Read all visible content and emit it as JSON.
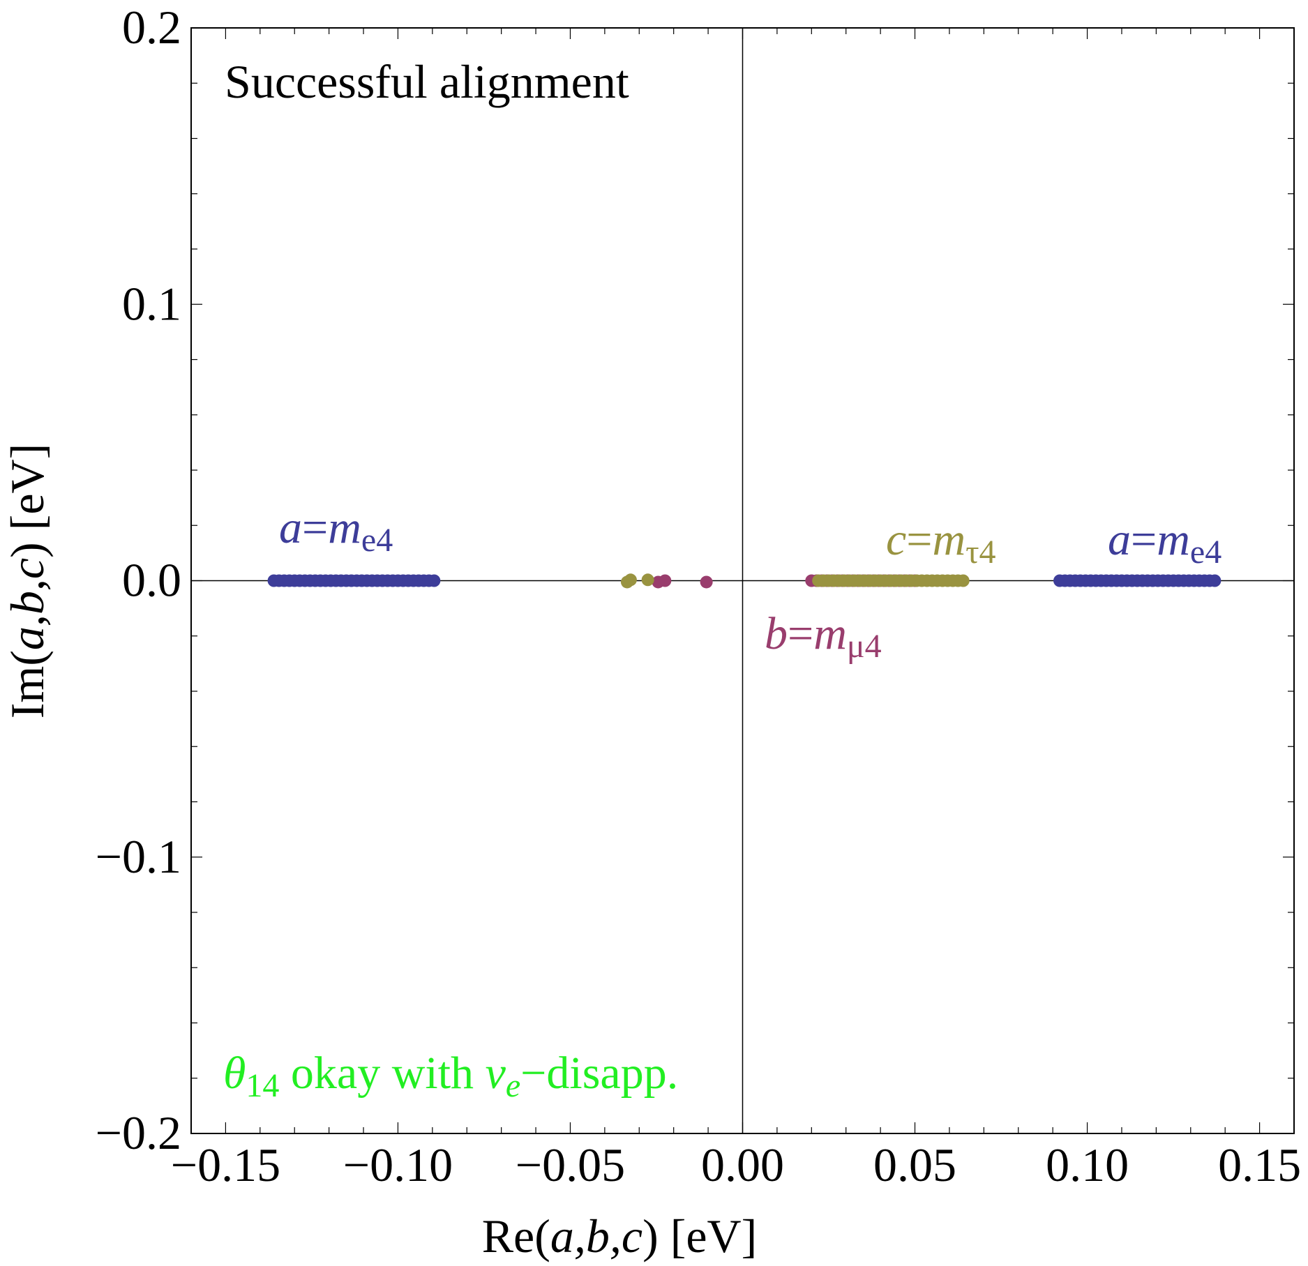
{
  "chart_data": {
    "type": "scatter",
    "title": "Successful alignment",
    "xlabel": {
      "pre": "Re(",
      "vars": "a,b,c",
      "post": ") [eV]"
    },
    "ylabel": {
      "pre": "Im(",
      "vars": "a,b,c",
      "post": ") [eV]"
    },
    "xlim": [
      -0.16,
      0.16
    ],
    "ylim": [
      -0.2,
      0.2
    ],
    "x_ticks": [
      -0.15,
      -0.1,
      -0.05,
      0.0,
      0.05,
      0.1,
      0.15
    ],
    "x_tick_labels": [
      "−0.15",
      "−0.10",
      "−0.05",
      "0.00",
      "0.05",
      "0.10",
      "0.15"
    ],
    "y_ticks": [
      -0.2,
      -0.1,
      0.0,
      0.1,
      0.2
    ],
    "y_tick_labels": [
      "−0.2",
      "−0.1",
      "0.0",
      "0.1",
      "0.2"
    ],
    "colors": {
      "a": "#3d3d99",
      "b": "#993d6d",
      "c": "#999340",
      "note": "#22ee22",
      "axis": "#000000"
    },
    "series": [
      {
        "name": "a",
        "label_var": "a",
        "label_mass": "m",
        "label_sub": "e4",
        "color_key": "a",
        "ranges": [
          [
            -0.136,
            -0.089
          ],
          [
            0.092,
            0.138
          ]
        ],
        "step": 0.0015
      },
      {
        "name": "b",
        "label_var": "b",
        "label_mass": "m",
        "label_sub": "μ4",
        "color_key": "b",
        "ranges": [
          [
            0.02,
            0.05
          ]
        ],
        "step": 0.0015,
        "extra_points": [
          [
            -0.0225,
            0.0
          ],
          [
            -0.0245,
            -0.0005
          ],
          [
            -0.0105,
            -0.0005
          ]
        ]
      },
      {
        "name": "c",
        "label_var": "c",
        "label_mass": "m",
        "label_sub": "τ4",
        "color_key": "c",
        "ranges": [
          [
            0.022,
            0.064
          ]
        ],
        "step": 0.0015,
        "extra_points": [
          [
            -0.0335,
            -0.0005
          ],
          [
            -0.0325,
            0.0003
          ],
          [
            -0.0275,
            0.0003
          ]
        ]
      }
    ],
    "annotations": {
      "note": {
        "theta": "θ",
        "theta_sub": "14",
        "text": " okay with ",
        "nu": "ν",
        "nu_sub": "e",
        "tail": "−disapp."
      }
    }
  }
}
